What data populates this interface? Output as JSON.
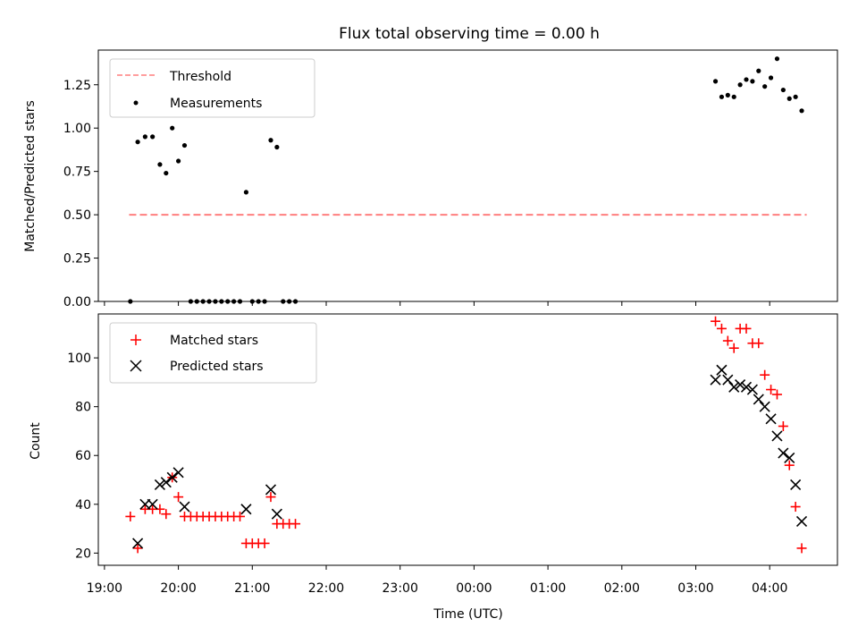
{
  "figure": {
    "title": "Flux total observing time = 0.00 h"
  },
  "chart_data": [
    {
      "type": "scatter",
      "panel": "top",
      "ylabel": "Matched/Predicted stars",
      "ylim": [
        0,
        1.45
      ],
      "yticks": [
        0.0,
        0.25,
        0.5,
        0.75,
        1.0,
        1.25
      ],
      "ytick_labels": [
        "0.00",
        "0.25",
        "0.50",
        "0.75",
        "1.00",
        "1.25"
      ],
      "legend": {
        "placement": "top-left"
      },
      "series": [
        {
          "name": "Threshold",
          "kind": "dashed-line",
          "color": "#ff7f7f",
          "x": [
            "19:20",
            "04:30"
          ],
          "y": [
            0.5,
            0.5
          ]
        },
        {
          "name": "Measurements",
          "kind": "dot",
          "color": "#000000",
          "x": [
            "19:21",
            "19:27",
            "19:33",
            "19:39",
            "19:45",
            "19:50",
            "19:55",
            "20:00",
            "20:05",
            "20:10",
            "20:15",
            "20:20",
            "20:25",
            "20:30",
            "20:35",
            "20:40",
            "20:45",
            "20:50",
            "20:55",
            "21:00",
            "21:05",
            "21:10",
            "21:15",
            "21:20",
            "21:25",
            "21:30",
            "21:35",
            "03:16",
            "03:21",
            "03:26",
            "03:31",
            "03:36",
            "03:41",
            "03:46",
            "03:51",
            "03:56",
            "04:01",
            "04:06",
            "04:11",
            "04:16",
            "04:21",
            "04:26"
          ],
          "y": [
            0.0,
            0.92,
            0.95,
            0.95,
            0.79,
            0.74,
            1.0,
            0.81,
            0.9,
            0.0,
            0.0,
            0.0,
            0.0,
            0.0,
            0.0,
            0.0,
            0.0,
            0.0,
            0.63,
            0.0,
            0.0,
            0.0,
            0.93,
            0.89,
            0.0,
            0.0,
            0.0,
            1.27,
            1.18,
            1.19,
            1.18,
            1.25,
            1.28,
            1.27,
            1.33,
            1.24,
            1.29,
            1.4,
            1.22,
            1.17,
            1.18,
            1.1
          ]
        }
      ]
    },
    {
      "type": "scatter",
      "panel": "bottom",
      "xlabel": "Time (UTC)",
      "ylabel": "Count",
      "ylim": [
        15,
        118
      ],
      "yticks": [
        20,
        40,
        60,
        80,
        100
      ],
      "ytick_labels": [
        "20",
        "40",
        "60",
        "80",
        "100"
      ],
      "x_range": [
        "18:55",
        "04:55"
      ],
      "xticks": [
        "19:00",
        "20:00",
        "21:00",
        "22:00",
        "23:00",
        "00:00",
        "01:00",
        "02:00",
        "03:00",
        "04:00"
      ],
      "xtick_labels": [
        "19:00",
        "20:00",
        "21:00",
        "22:00",
        "23:00",
        "00:00",
        "01:00",
        "02:00",
        "03:00",
        "04:00"
      ],
      "legend": {
        "placement": "top-left"
      },
      "series": [
        {
          "name": "Matched stars",
          "kind": "plus",
          "color": "#ff0000",
          "x": [
            "19:21",
            "19:27",
            "19:33",
            "19:39",
            "19:45",
            "19:50",
            "19:55",
            "20:00",
            "20:05",
            "20:10",
            "20:15",
            "20:20",
            "20:25",
            "20:30",
            "20:35",
            "20:40",
            "20:45",
            "20:50",
            "20:55",
            "21:00",
            "21:05",
            "21:10",
            "21:15",
            "21:20",
            "21:25",
            "21:30",
            "21:35",
            "03:16",
            "03:21",
            "03:26",
            "03:31",
            "03:36",
            "03:41",
            "03:46",
            "03:51",
            "03:56",
            "04:01",
            "04:06",
            "04:11",
            "04:16",
            "04:21",
            "04:26"
          ],
          "y": [
            35,
            22,
            38,
            38,
            38,
            36,
            51,
            43,
            35,
            35,
            35,
            35,
            35,
            35,
            35,
            35,
            35,
            35,
            24,
            24,
            24,
            24,
            43,
            32,
            32,
            32,
            32,
            115,
            112,
            107,
            104,
            112,
            112,
            106,
            106,
            93,
            87,
            85,
            72,
            56,
            39,
            22
          ]
        },
        {
          "name": "Predicted stars",
          "kind": "cross",
          "color": "#000000",
          "x": [
            "19:27",
            "19:33",
            "19:39",
            "19:45",
            "19:50",
            "19:55",
            "20:00",
            "20:05",
            "20:55",
            "21:15",
            "21:20",
            "03:16",
            "03:21",
            "03:26",
            "03:31",
            "03:36",
            "03:41",
            "03:46",
            "03:51",
            "03:56",
            "04:01",
            "04:06",
            "04:11",
            "04:16",
            "04:21",
            "04:26"
          ],
          "y": [
            24,
            40,
            40,
            48,
            49,
            51,
            53,
            39,
            38,
            46,
            36,
            91,
            95,
            91,
            88,
            89,
            88,
            87,
            83,
            80,
            75,
            68,
            61,
            59,
            48,
            33
          ]
        }
      ]
    }
  ]
}
